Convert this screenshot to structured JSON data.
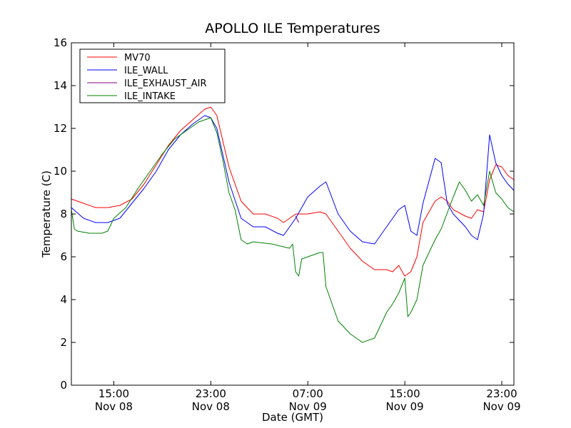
{
  "chart_data": {
    "type": "line",
    "title": "APOLLO ILE Temperatures",
    "xlabel": "Date (GMT)",
    "ylabel": "Temperature (C)",
    "ylim": [
      0,
      16
    ],
    "xlim": [
      "2013-11-08 11:30",
      "2013-11-10 00:00"
    ],
    "yticks": [
      0,
      2,
      4,
      6,
      8,
      10,
      12,
      14,
      16
    ],
    "xticks": [
      {
        "t": "2013-11-08 15:00",
        "line1": "15:00",
        "line2": "Nov 08"
      },
      {
        "t": "2013-11-08 23:00",
        "line1": "23:00",
        "line2": "Nov 08"
      },
      {
        "t": "2013-11-09 07:00",
        "line1": "07:00",
        "line2": "Nov 09"
      },
      {
        "t": "2013-11-09 15:00",
        "line1": "15:00",
        "line2": "Nov 09"
      },
      {
        "t": "2013-11-09 23:00",
        "line1": "23:00",
        "line2": "Nov 09"
      }
    ],
    "grid": false,
    "legend_position": "top-left",
    "series": [
      {
        "name": "MV70",
        "color": "#ff0000",
        "x": [
          "2013-11-08 11:30",
          "2013-11-08 12:30",
          "2013-11-08 13:30",
          "2013-11-08 14:30",
          "2013-11-08 15:30",
          "2013-11-08 16:30",
          "2013-11-08 17:30",
          "2013-11-08 18:30",
          "2013-11-08 19:30",
          "2013-11-08 20:30",
          "2013-11-08 21:30",
          "2013-11-08 22:30",
          "2013-11-08 23:00",
          "2013-11-08 23:30",
          "2013-11-09 00:30",
          "2013-11-09 01:30",
          "2013-11-09 02:30",
          "2013-11-09 03:30",
          "2013-11-09 04:30",
          "2013-11-09 05:00",
          "2013-11-09 05:30",
          "2013-11-09 06:00",
          "2013-11-09 07:00",
          "2013-11-09 08:00",
          "2013-11-09 08:30",
          "2013-11-09 09:30",
          "2013-11-09 10:30",
          "2013-11-09 11:30",
          "2013-11-09 12:30",
          "2013-11-09 13:30",
          "2013-11-09 14:00",
          "2013-11-09 14:30",
          "2013-11-09 15:00",
          "2013-11-09 15:30",
          "2013-11-09 16:00",
          "2013-11-09 16:30",
          "2013-11-09 17:30",
          "2013-11-09 18:00",
          "2013-11-09 18:30",
          "2013-11-09 19:00",
          "2013-11-09 20:00",
          "2013-11-09 20:30",
          "2013-11-09 21:00",
          "2013-11-09 21:30",
          "2013-11-09 22:00",
          "2013-11-09 22:30",
          "2013-11-09 23:00",
          "2013-11-09 23:30",
          "2013-11-10 00:00"
        ],
        "y": [
          8.7,
          8.5,
          8.3,
          8.3,
          8.4,
          8.7,
          9.4,
          10.3,
          11.2,
          11.9,
          12.4,
          12.9,
          13.0,
          12.6,
          10.2,
          8.6,
          8.0,
          8.0,
          7.8,
          7.6,
          7.8,
          8.0,
          8.0,
          8.1,
          8.0,
          7.2,
          6.4,
          5.8,
          5.4,
          5.4,
          5.3,
          5.6,
          5.1,
          5.3,
          6.0,
          7.6,
          8.6,
          8.8,
          8.6,
          8.2,
          7.9,
          7.8,
          8.2,
          8.1,
          9.6,
          10.3,
          10.2,
          9.8,
          9.6
        ]
      },
      {
        "name": "ILE_WALL",
        "color": "#0000ff",
        "x": [
          "2013-11-08 11:30",
          "2013-11-08 12:30",
          "2013-11-08 13:30",
          "2013-11-08 14:30",
          "2013-11-08 15:30",
          "2013-11-08 16:30",
          "2013-11-08 17:30",
          "2013-11-08 18:30",
          "2013-11-08 19:30",
          "2013-11-08 20:30",
          "2013-11-08 21:30",
          "2013-11-08 22:30",
          "2013-11-08 23:00",
          "2013-11-08 23:30",
          "2013-11-09 00:30",
          "2013-11-09 01:30",
          "2013-11-09 02:30",
          "2013-11-09 03:30",
          "2013-11-09 04:30",
          "2013-11-09 05:00",
          "2013-11-09 05:30",
          "2013-11-09 06:00",
          "2013-11-09 07:00",
          "2013-11-09 08:00",
          "2013-11-09 08:30",
          "2013-11-09 09:30",
          "2013-11-09 10:30",
          "2013-11-09 11:30",
          "2013-11-09 12:30",
          "2013-11-09 13:30",
          "2013-11-09 14:00",
          "2013-11-09 14:30",
          "2013-11-09 15:00",
          "2013-11-09 15:30",
          "2013-11-09 16:00",
          "2013-11-09 16:30",
          "2013-11-09 17:30",
          "2013-11-09 18:00",
          "2013-11-09 18:30",
          "2013-11-09 19:00",
          "2013-11-09 20:00",
          "2013-11-09 20:30",
          "2013-11-09 21:00",
          "2013-11-09 21:30",
          "2013-11-09 22:00",
          "2013-11-09 22:30",
          "2013-11-09 23:00",
          "2013-11-09 23:30",
          "2013-11-10 00:00"
        ],
        "y": [
          8.3,
          7.8,
          7.6,
          7.6,
          7.8,
          8.5,
          9.2,
          10.0,
          11.0,
          11.7,
          12.2,
          12.6,
          12.5,
          12.0,
          9.5,
          7.8,
          7.4,
          7.4,
          7.1,
          7.0,
          7.4,
          7.8,
          8.8,
          9.3,
          9.5,
          8.0,
          7.2,
          6.7,
          6.6,
          7.4,
          7.8,
          8.2,
          8.4,
          7.2,
          7.0,
          8.5,
          10.6,
          10.4,
          8.5,
          8.0,
          7.4,
          7.0,
          6.8,
          8.0,
          11.7,
          10.4,
          9.8,
          9.4,
          9.1
        ]
      },
      {
        "name": "ILE_EXHAUST_AIR",
        "color": "#800080",
        "x": [
          "2013-11-09 06:00",
          "2013-11-09 06:15"
        ],
        "y": [
          7.9,
          7.6
        ]
      },
      {
        "name": "ILE_INTAKE",
        "color": "#008000",
        "x": [
          "2013-11-08 11:30",
          "2013-11-08 11:45",
          "2013-11-08 12:00",
          "2013-11-08 13:00",
          "2013-11-08 14:00",
          "2013-11-08 14:30",
          "2013-11-08 15:00",
          "2013-11-08 16:00",
          "2013-11-08 17:00",
          "2013-11-08 18:00",
          "2013-11-08 19:00",
          "2013-11-08 20:00",
          "2013-11-08 21:00",
          "2013-11-08 22:00",
          "2013-11-08 23:00",
          "2013-11-08 23:30",
          "2013-11-09 00:00",
          "2013-11-09 00:30",
          "2013-11-09 01:00",
          "2013-11-09 01:30",
          "2013-11-09 02:00",
          "2013-11-09 02:30",
          "2013-11-09 04:00",
          "2013-11-09 05:30",
          "2013-11-09 05:45",
          "2013-11-09 06:00",
          "2013-11-09 06:15",
          "2013-11-09 06:30",
          "2013-11-09 08:00",
          "2013-11-09 08:15",
          "2013-11-09 08:30",
          "2013-11-09 09:30",
          "2013-11-09 10:30",
          "2013-11-09 11:30",
          "2013-11-09 12:30",
          "2013-11-09 13:00",
          "2013-11-09 13:30",
          "2013-11-09 14:00",
          "2013-11-09 14:30",
          "2013-11-09 15:00",
          "2013-11-09 15:15",
          "2013-11-09 15:30",
          "2013-11-09 16:00",
          "2013-11-09 16:30",
          "2013-11-09 17:30",
          "2013-11-09 18:00",
          "2013-11-09 19:00",
          "2013-11-09 19:30",
          "2013-11-09 20:00",
          "2013-11-09 20:30",
          "2013-11-09 21:00",
          "2013-11-09 21:30",
          "2013-11-09 22:00",
          "2013-11-09 22:30",
          "2013-11-09 23:00",
          "2013-11-09 23:30",
          "2013-11-10 00:00"
        ],
        "y": [
          8.2,
          7.3,
          7.2,
          7.1,
          7.1,
          7.2,
          7.8,
          8.3,
          9.2,
          10.0,
          10.8,
          11.5,
          11.9,
          12.3,
          12.5,
          11.8,
          10.5,
          9.0,
          8.2,
          6.8,
          6.6,
          6.7,
          6.6,
          6.4,
          6.6,
          5.3,
          5.1,
          5.9,
          6.2,
          6.2,
          4.6,
          3.0,
          2.4,
          2.0,
          2.2,
          2.8,
          3.4,
          3.8,
          4.3,
          5.0,
          3.2,
          3.4,
          4.0,
          5.6,
          6.8,
          7.3,
          8.8,
          9.5,
          9.1,
          8.6,
          8.9,
          8.4,
          10.0,
          9.0,
          8.7,
          8.3,
          8.1
        ]
      }
    ]
  }
}
